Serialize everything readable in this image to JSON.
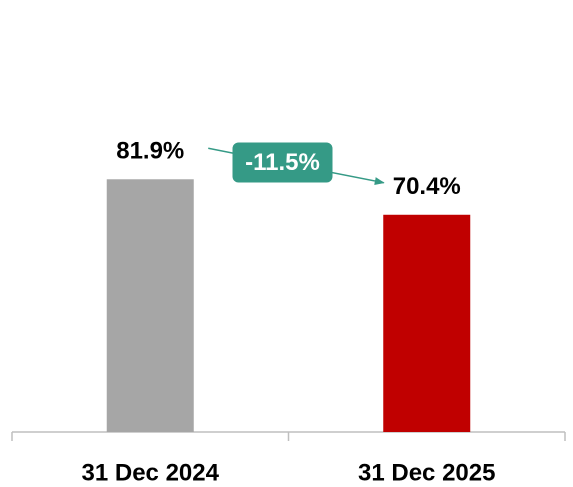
{
  "chart_data": {
    "type": "bar",
    "categories": [
      "31 Dec 2024",
      "31 Dec 2025"
    ],
    "values": [
      81.9,
      70.4
    ],
    "value_labels": [
      "81.9%",
      "70.4%"
    ],
    "colors": [
      "#a6a6a6",
      "#c00000"
    ],
    "ylim": [
      0,
      140
    ],
    "annotation": "-11.5%",
    "annotation_color": "#359a86"
  }
}
